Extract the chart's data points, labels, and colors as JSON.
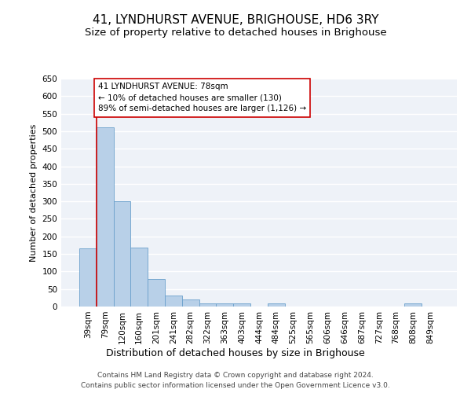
{
  "title": "41, LYNDHURST AVENUE, BRIGHOUSE, HD6 3RY",
  "subtitle": "Size of property relative to detached houses in Brighouse",
  "xlabel": "Distribution of detached houses by size in Brighouse",
  "ylabel": "Number of detached properties",
  "bar_labels": [
    "39sqm",
    "79sqm",
    "120sqm",
    "160sqm",
    "201sqm",
    "241sqm",
    "282sqm",
    "322sqm",
    "363sqm",
    "403sqm",
    "444sqm",
    "484sqm",
    "525sqm",
    "565sqm",
    "606sqm",
    "646sqm",
    "687sqm",
    "727sqm",
    "768sqm",
    "808sqm",
    "849sqm"
  ],
  "bar_heights": [
    165,
    510,
    300,
    168,
    78,
    32,
    20,
    8,
    8,
    8,
    0,
    8,
    0,
    0,
    0,
    0,
    0,
    0,
    0,
    8,
    0
  ],
  "bar_color": "#b8d0e8",
  "bar_edge_color": "#6aa0cc",
  "background_color": "#eef2f8",
  "grid_color": "#ffffff",
  "annotation_box_text": "41 LYNDHURST AVENUE: 78sqm\n← 10% of detached houses are smaller (130)\n89% of semi-detached houses are larger (1,126) →",
  "annotation_box_color": "#cc0000",
  "vline_color": "#cc0000",
  "vline_x": 0.5,
  "ylim": [
    0,
    650
  ],
  "yticks": [
    0,
    50,
    100,
    150,
    200,
    250,
    300,
    350,
    400,
    450,
    500,
    550,
    600,
    650
  ],
  "footer_line1": "Contains HM Land Registry data © Crown copyright and database right 2024.",
  "footer_line2": "Contains public sector information licensed under the Open Government Licence v3.0.",
  "title_fontsize": 11,
  "subtitle_fontsize": 9.5,
  "xlabel_fontsize": 9,
  "ylabel_fontsize": 8,
  "tick_fontsize": 7.5,
  "annotation_fontsize": 7.5,
  "footer_fontsize": 6.5
}
